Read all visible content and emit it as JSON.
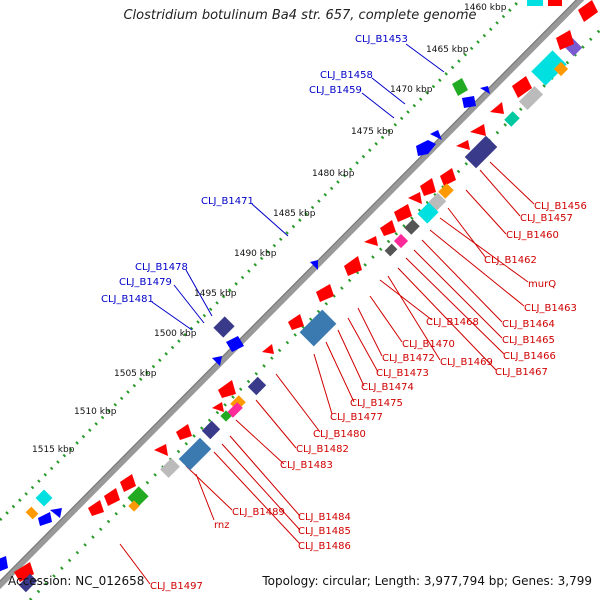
{
  "title": "Clostridium botulinum Ba4 str. 657, complete genome",
  "footer": {
    "accession": "Accession: NC_012658",
    "stats": "Topology: circular; Length: 3,977,794 bp; Genes: 3,799"
  },
  "colors": {
    "backbone": "#999999",
    "gc_dots": "#2a9a2a",
    "label_forward": "#0000c8",
    "label_reverse": "#d00000",
    "gene_main": "#ff0000"
  },
  "ticks": [
    {
      "label": "1460 kbp"
    },
    {
      "label": "1465 kbp"
    },
    {
      "label": "1470 kbp"
    },
    {
      "label": "1475 kbp"
    },
    {
      "label": "1480 kbp"
    },
    {
      "label": "1485 kbp"
    },
    {
      "label": "1490 kbp"
    },
    {
      "label": "1495 kbp"
    },
    {
      "label": "1500 kbp"
    },
    {
      "label": "1505 kbp"
    },
    {
      "label": "1510 kbp"
    },
    {
      "label": "1515 kbp"
    }
  ],
  "labels_blue": [
    {
      "text": "CLJ_B1453"
    },
    {
      "text": "CLJ_B1458"
    },
    {
      "text": "CLJ_B1459"
    },
    {
      "text": "CLJ_B1471"
    },
    {
      "text": "CLJ_B1478"
    },
    {
      "text": "CLJ_B1479"
    },
    {
      "text": "CLJ_B1481"
    }
  ],
  "labels_red": [
    {
      "text": "CLJ_B1456"
    },
    {
      "text": "CLJ_B1457"
    },
    {
      "text": "CLJ_B1460"
    },
    {
      "text": "CLJ_B1462"
    },
    {
      "text": "murQ"
    },
    {
      "text": "CLJ_B1463"
    },
    {
      "text": "CLJ_B1464"
    },
    {
      "text": "CLJ_B1465"
    },
    {
      "text": "CLJ_B1466"
    },
    {
      "text": "CLJ_B1467"
    },
    {
      "text": "CLJ_B1468"
    },
    {
      "text": "CLJ_B1469"
    },
    {
      "text": "CLJ_B1470"
    },
    {
      "text": "CLJ_B1472"
    },
    {
      "text": "CLJ_B1473"
    },
    {
      "text": "CLJ_B1474"
    },
    {
      "text": "CLJ_B1475"
    },
    {
      "text": "CLJ_B1477"
    },
    {
      "text": "CLJ_B1480"
    },
    {
      "text": "CLJ_B1482"
    },
    {
      "text": "CLJ_B1483"
    },
    {
      "text": "CLJ_B1484"
    },
    {
      "text": "CLJ_B1485"
    },
    {
      "text": "CLJ_B1486"
    },
    {
      "text": "CLJ_B1489"
    },
    {
      "text": "rnz"
    },
    {
      "text": "CLJ_B1497"
    }
  ]
}
